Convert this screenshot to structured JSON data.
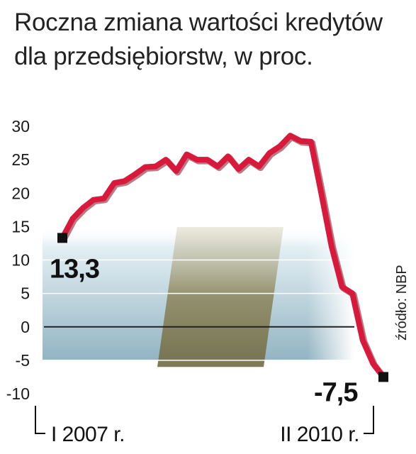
{
  "chart_data": {
    "type": "line",
    "title_lines": [
      "Roczna zmiana wartości kredytów",
      "dla przedsiębiorstw, w proc."
    ],
    "xlabel": "",
    "ylabel": "",
    "ylim": [
      -10,
      30
    ],
    "y_ticks": [
      "30",
      "25",
      "20",
      "15",
      "10",
      "5",
      "0",
      "-5",
      "-10"
    ],
    "grid": true,
    "x_start_label": "I 2007 r.",
    "x_end_label": "II 2010 r.",
    "start_value_label": "13,3",
    "end_value_label": "-7,5",
    "source": "źródło: NBP",
    "series": [
      {
        "values": [
          13.3,
          16.2,
          17.8,
          19.0,
          19.2,
          21.5,
          21.8,
          22.8,
          23.9,
          24.0,
          25.0,
          23.3,
          25.8,
          25.0,
          25.0,
          24.0,
          25.5,
          23.6,
          25.0,
          24.0,
          26.0,
          27.0,
          28.6,
          27.8,
          27.7,
          20.0,
          12.0,
          6.0,
          5.0,
          -2.0,
          -5.5,
          -7.5
        ]
      }
    ],
    "colors": {
      "line": "#d8193b",
      "line_shadow": "#7a1020",
      "band_top": "#dcecf2",
      "band_bottom": "#9ab9c6",
      "highlight": "#7a7549"
    }
  }
}
